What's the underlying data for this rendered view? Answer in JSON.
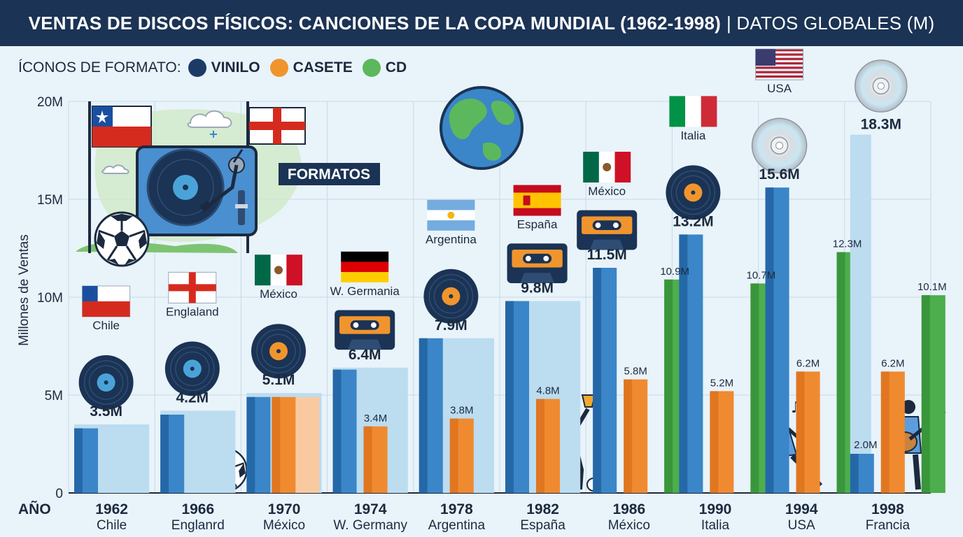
{
  "header": {
    "title_bold": "VENTAS DE DISCOS FÍSICOS: CANCIONES DE LA COPA MUNDIAL (1962-1998)",
    "title_light": "| DATOS GLOBALES (M)"
  },
  "legend": {
    "title": "ÍCONOS DE FORMATO:",
    "items": [
      {
        "label": "VINILO",
        "color": "#1b3b66"
      },
      {
        "label": "CASETE",
        "color": "#f0952e"
      },
      {
        "label": "CD",
        "color": "#5cb85c"
      }
    ]
  },
  "formats_box": "FORMATOS",
  "colors": {
    "vinyl": "#3a86c8",
    "vinyl_dark": "#2568a8",
    "cassette": "#f08a30",
    "cassette_dark": "#e07620",
    "cd": "#4cae4c",
    "cd_dark": "#3a963a",
    "total": "#bcdcf0",
    "total_alt": "#f9caa0"
  },
  "chart_data": {
    "type": "bar",
    "ylabel": "Millones de Ventas",
    "xlabel": "AÑO",
    "ylim": [
      0,
      20
    ],
    "yticks": [
      "0",
      "5M",
      "10M",
      "15M",
      "20M"
    ],
    "categories": [
      {
        "year": "1962",
        "host": "Chile",
        "flag_label": "Chile",
        "total": 3.5,
        "total_label": "3.5M",
        "vinyl": 3.3,
        "cassette": null,
        "cd": null,
        "cassette_label": "",
        "cd_label": "",
        "vinyl_label": ""
      },
      {
        "year": "1966",
        "host": "Englanrd",
        "flag_label": "Englaland",
        "total": 4.2,
        "total_label": "4.2M",
        "vinyl": 4.0,
        "cassette": null,
        "cd": null,
        "cassette_label": "",
        "cd_label": "",
        "vinyl_label": ""
      },
      {
        "year": "1970",
        "host": "México",
        "flag_label": "México",
        "total": 5.1,
        "total_label": "5.1M",
        "vinyl": 4.9,
        "cassette": 4.9,
        "cd": null,
        "cassette_label": "",
        "cd_label": "",
        "vinyl_label": ""
      },
      {
        "year": "1974",
        "host": "W. Germany",
        "flag_label": "W. Germania",
        "total": 6.4,
        "total_label": "6.4M",
        "vinyl": 6.3,
        "cassette": 3.4,
        "cd": null,
        "cassette_label": "3.4M",
        "cd_label": "",
        "vinyl_label": ""
      },
      {
        "year": "1978",
        "host": "Argentina",
        "flag_label": "Argentina",
        "total": 7.9,
        "total_label": "7.9M",
        "vinyl": 7.9,
        "cassette": 3.8,
        "cd": null,
        "cassette_label": "3.8M",
        "cd_label": "",
        "vinyl_label": ""
      },
      {
        "year": "1982",
        "host": "España",
        "flag_label": "España",
        "total": 9.8,
        "total_label": "9.8M",
        "vinyl": 9.8,
        "cassette": 4.8,
        "cd": null,
        "cassette_label": "4.8M",
        "cd_label": "",
        "vinyl_label": ""
      },
      {
        "year": "1986",
        "host": "México",
        "flag_label": "México",
        "total": null,
        "total_label": "11.5M",
        "vinyl": 11.5,
        "cassette": 5.8,
        "cd": 10.9,
        "cassette_label": "5.8M",
        "cd_label": "10.9M",
        "vinyl_label": ""
      },
      {
        "year": "1990",
        "host": "Italia",
        "flag_label": "Italia",
        "total": null,
        "total_label": "13.2M",
        "vinyl": 13.2,
        "cassette": 5.2,
        "cd": 10.7,
        "cassette_label": "5.2M",
        "cd_label": "10.7M",
        "vinyl_label": ""
      },
      {
        "year": "1994",
        "host": "USA",
        "flag_label": "USA",
        "total": null,
        "total_label": "15.6M",
        "vinyl": 15.6,
        "cassette": 6.2,
        "cd": 12.3,
        "cassette_label": "6.2M",
        "cd_label": "12.3M",
        "vinyl_label": ""
      },
      {
        "year": "1998",
        "host": "Francia",
        "flag_label": "",
        "total": 18.3,
        "total_label": "18.3M",
        "vinyl": 2.0,
        "cassette": 6.2,
        "cd": 10.1,
        "cassette_label": "6.2M",
        "cd_label": "10.1M",
        "vinyl_label": "2.0M"
      }
    ]
  }
}
